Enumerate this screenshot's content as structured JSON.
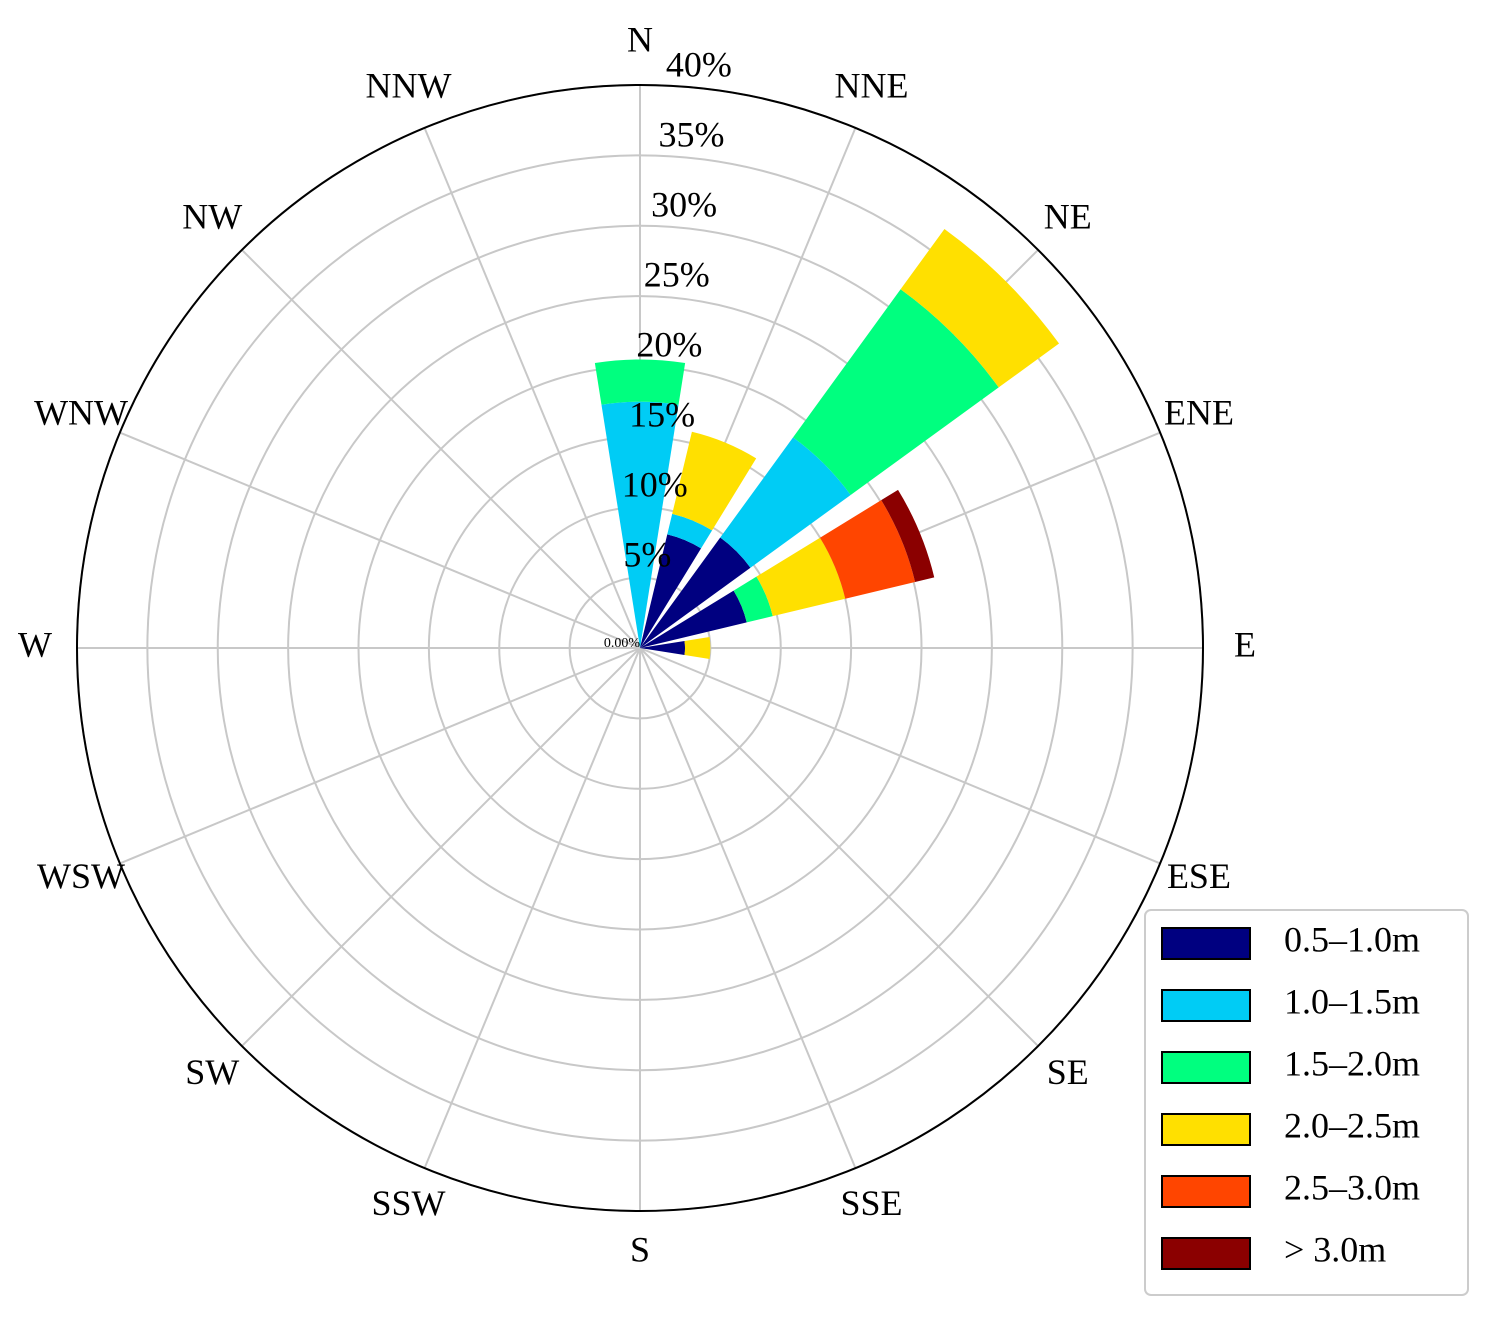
{
  "chart_data": {
    "type": "windrose",
    "categories": [
      "N",
      "NNE",
      "NE",
      "ENE",
      "E",
      "ESE",
      "SE",
      "SSE",
      "S",
      "SSW",
      "SW",
      "WSW",
      "W",
      "WNW",
      "NW",
      "NNW"
    ],
    "series": [
      {
        "name": "0.5–1.0m",
        "color": "#000080",
        "values": [
          0,
          8.3,
          9.7,
          7.8,
          3.2,
          0,
          0,
          0,
          0,
          0,
          0,
          0,
          0,
          0,
          0,
          0
        ]
      },
      {
        "name": "1.0–1.5m",
        "color": "#00ccf5",
        "values": [
          17.5,
          1.5,
          8.8,
          0,
          0,
          0,
          0,
          0,
          0,
          0,
          0,
          0,
          0,
          0,
          0,
          0
        ]
      },
      {
        "name": "1.5–2.0m",
        "color": "#00ff7f",
        "values": [
          3.0,
          0,
          13.0,
          1.9,
          0,
          0,
          0,
          0,
          0,
          0,
          0,
          0,
          0,
          0,
          0,
          0
        ]
      },
      {
        "name": "2.0–2.5m",
        "color": "#ffe000",
        "values": [
          0,
          6.0,
          5.3,
          5.3,
          1.8,
          0,
          0,
          0,
          0,
          0,
          0,
          0,
          0,
          0,
          0,
          0
        ]
      },
      {
        "name": "2.5–3.0m",
        "color": "#ff4500",
        "values": [
          0,
          0,
          0,
          5.1,
          0,
          0,
          0,
          0,
          0,
          0,
          0,
          0,
          0,
          0,
          0,
          0
        ]
      },
      {
        "name": "> 3.0m",
        "color": "#8b0000",
        "values": [
          0,
          0,
          0,
          1.4,
          0,
          0,
          0,
          0,
          0,
          0,
          0,
          0,
          0,
          0,
          0,
          0
        ]
      }
    ],
    "ylim": [
      0,
      40
    ],
    "yticks": [
      {
        "value": 0,
        "label": "0.00%"
      },
      {
        "value": 5,
        "label": "5%"
      },
      {
        "value": 10,
        "label": "10%"
      },
      {
        "value": 15,
        "label": "15%"
      },
      {
        "value": 20,
        "label": "20%"
      },
      {
        "value": 25,
        "label": "25%"
      },
      {
        "value": 30,
        "label": "30%"
      },
      {
        "value": 35,
        "label": "35%"
      },
      {
        "value": 40,
        "label": "40%"
      }
    ],
    "grid": true,
    "legend": "lower right"
  }
}
